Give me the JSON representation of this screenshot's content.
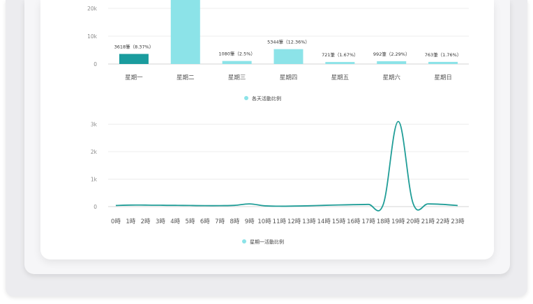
{
  "colors": {
    "accent": "#1a9c9e",
    "bar": "#8ce3e8",
    "line": "#1f9d97",
    "legend_dot": "#8ce3e8"
  },
  "chart_data": [
    {
      "type": "bar",
      "categories": [
        "星期一",
        "星期二",
        "星期三",
        "星期四",
        "星期五",
        "星期六",
        "星期日"
      ],
      "values": [
        3618,
        25000,
        1080,
        5344,
        721,
        992,
        763
      ],
      "data_labels": [
        "3618筆（8.37%）",
        "",
        "1080筆（2.5%）",
        "5344筆（12.36%）",
        "721筆（1.67%）",
        "992筆（2.29%）",
        "763筆（1.76%）"
      ],
      "highlight_index": 0,
      "y_ticks": [
        "0",
        "10k",
        "20k"
      ],
      "y_tick_values": [
        0,
        10000,
        20000
      ],
      "ylim": [
        0,
        26000
      ],
      "legend": [
        "各天活動比例"
      ],
      "legend_position": "bottom-center",
      "grid": true
    },
    {
      "type": "line",
      "x": [
        "0時",
        "1時",
        "2時",
        "3時",
        "4時",
        "5時",
        "6時",
        "7時",
        "8時",
        "9時",
        "10時",
        "11時",
        "12時",
        "13時",
        "14時",
        "15時",
        "16時",
        "17時",
        "18時",
        "19時",
        "20時",
        "21時",
        "22時",
        "23時"
      ],
      "values": [
        40,
        55,
        55,
        50,
        45,
        40,
        35,
        35,
        45,
        100,
        30,
        15,
        20,
        30,
        45,
        60,
        70,
        80,
        90,
        3100,
        120,
        100,
        80,
        40
      ],
      "y_ticks": [
        "0",
        "1k",
        "2k",
        "3k"
      ],
      "y_tick_values": [
        0,
        1000,
        2000,
        3000
      ],
      "ylim": [
        0,
        3000
      ],
      "legend": [
        "星期一活動比例"
      ],
      "legend_position": "bottom-center",
      "grid": true
    }
  ]
}
